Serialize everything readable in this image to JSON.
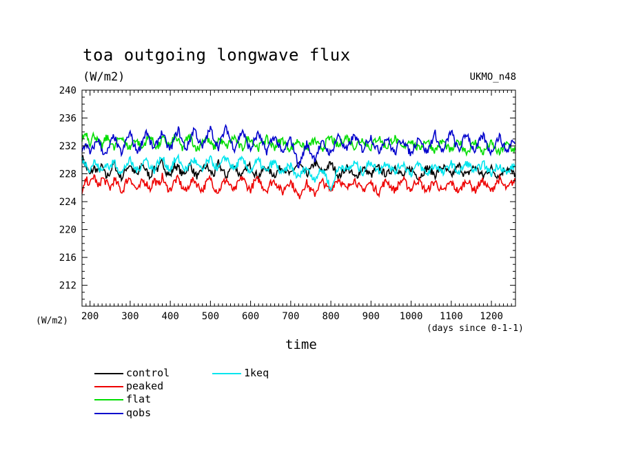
{
  "chart_data": {
    "type": "line",
    "title": "toa outgoing longwave flux",
    "units_label": "(W/m2)",
    "model_label": "UKMO_n48",
    "ylabel": "(W/m2)",
    "xlabel": "time",
    "x_units_label": "(days since 0-1-1)",
    "xlim": [
      180,
      1260
    ],
    "ylim": [
      209,
      240
    ],
    "x_ticks": [
      200,
      300,
      400,
      500,
      600,
      700,
      800,
      900,
      1000,
      1100,
      1200
    ],
    "y_ticks": [
      212,
      216,
      220,
      224,
      228,
      232,
      236,
      240
    ],
    "grid": false,
    "legend_position": "below",
    "x_start": 180,
    "x_step": 10,
    "series": [
      {
        "name": "control",
        "color": "#000000",
        "values": [
          230.5,
          229.0,
          227.8,
          228.9,
          228.3,
          229.1,
          227.5,
          228.2,
          229.6,
          228.0,
          227.4,
          228.8,
          229.3,
          228.1,
          227.9,
          229.5,
          228.4,
          227.6,
          229.0,
          228.6,
          229.8,
          228.3,
          227.7,
          229.2,
          228.9,
          227.8,
          228.5,
          229.4,
          228.0,
          227.5,
          228.7,
          229.1,
          228.2,
          227.9,
          229.6,
          228.4,
          227.6,
          228.8,
          229.3,
          228.0,
          227.7,
          228.9,
          229.2,
          228.1,
          227.6,
          228.5,
          228.9,
          228.2,
          227.8,
          228.6,
          229.0,
          228.3,
          227.8,
          228.9,
          229.4,
          228.5,
          227.9,
          228.6,
          229.7,
          228.8,
          228.1,
          228.9,
          229.5,
          228.6,
          227.5,
          228.3,
          229.0,
          228.2,
          227.4,
          228.1,
          228.8,
          228.4,
          227.7,
          228.6,
          228.9,
          228.2,
          227.9,
          228.5,
          229.1,
          228.3,
          227.6,
          228.4,
          228.8,
          228.0,
          227.5,
          228.2,
          228.9,
          228.4,
          227.8,
          228.6,
          229.0,
          228.3,
          227.7,
          228.5,
          229.2,
          228.1,
          227.8,
          228.7,
          229.0,
          228.2,
          227.6,
          228.4,
          228.8,
          228.0,
          227.6,
          228.5,
          228.9,
          228.2,
          227.9
        ]
      },
      {
        "name": "peaked",
        "color": "#ee0000",
        "values": [
          225.0,
          227.2,
          226.5,
          227.8,
          226.0,
          227.4,
          226.8,
          225.9,
          227.1,
          226.4,
          225.3,
          226.9,
          227.5,
          226.2,
          225.6,
          227.0,
          226.7,
          225.8,
          227.2,
          226.3,
          227.6,
          226.1,
          225.7,
          226.9,
          227.3,
          226.0,
          225.5,
          226.8,
          227.1,
          226.2,
          225.6,
          226.7,
          227.4,
          226.0,
          225.4,
          226.6,
          227.2,
          226.1,
          225.5,
          226.8,
          227.5,
          226.3,
          225.7,
          226.9,
          227.2,
          226.2,
          225.6,
          226.7,
          227.0,
          226.1,
          225.3,
          226.5,
          226.9,
          225.8,
          224.6,
          225.9,
          226.7,
          225.6,
          225.1,
          226.3,
          226.9,
          226.0,
          225.6,
          226.8,
          227.3,
          226.4,
          225.7,
          226.9,
          227.1,
          226.2,
          225.5,
          226.4,
          226.7,
          225.8,
          225.3,
          226.5,
          227.0,
          226.1,
          225.6,
          226.6,
          227.2,
          226.3,
          225.7,
          226.8,
          227.1,
          226.0,
          225.5,
          226.4,
          226.9,
          226.0,
          225.3,
          226.3,
          226.8,
          225.9,
          225.4,
          226.5,
          227.1,
          226.2,
          225.6,
          226.6,
          227.0,
          226.1,
          225.5,
          226.6,
          227.2,
          226.3,
          225.8,
          226.7,
          226.9
        ]
      },
      {
        "name": "flat",
        "color": "#00dd00",
        "values": [
          233.0,
          234.0,
          232.4,
          233.7,
          232.6,
          231.9,
          233.2,
          232.8,
          231.5,
          232.9,
          233.4,
          232.1,
          231.7,
          233.0,
          232.5,
          231.6,
          232.8,
          233.5,
          232.2,
          231.8,
          233.1,
          232.6,
          231.9,
          233.3,
          232.7,
          231.6,
          232.9,
          233.4,
          232.0,
          231.5,
          232.8,
          233.2,
          232.3,
          231.7,
          233.0,
          232.5,
          231.8,
          232.7,
          233.3,
          232.1,
          231.6,
          232.9,
          233.1,
          232.2,
          231.7,
          232.6,
          233.0,
          232.3,
          231.8,
          232.5,
          232.9,
          232.0,
          231.5,
          232.4,
          232.8,
          231.9,
          231.4,
          232.3,
          232.8,
          232.0,
          231.6,
          232.7,
          233.2,
          232.4,
          231.9,
          232.9,
          233.3,
          232.5,
          231.8,
          232.6,
          233.0,
          232.2,
          231.7,
          232.8,
          233.2,
          232.3,
          231.8,
          232.7,
          233.1,
          232.2,
          231.6,
          232.5,
          232.9,
          232.0,
          231.5,
          232.4,
          232.8,
          231.9,
          231.3,
          232.2,
          232.7,
          231.8,
          231.2,
          232.1,
          232.6,
          231.7,
          231.1,
          232.0,
          232.5,
          231.6,
          231.0,
          231.9,
          232.4,
          231.5,
          230.9,
          231.8,
          232.3,
          231.6,
          231.4
        ]
      },
      {
        "name": "qobs",
        "color": "#0000cc",
        "values": [
          231.0,
          232.5,
          230.8,
          232.0,
          233.0,
          231.4,
          230.6,
          232.2,
          233.5,
          231.7,
          230.9,
          232.8,
          233.9,
          232.0,
          231.2,
          232.6,
          234.2,
          232.5,
          231.5,
          232.9,
          234.0,
          232.3,
          231.4,
          233.0,
          234.4,
          232.6,
          231.5,
          233.1,
          234.6,
          232.8,
          231.7,
          233.2,
          234.5,
          232.9,
          231.8,
          233.4,
          234.7,
          232.7,
          231.6,
          233.0,
          234.3,
          232.5,
          231.4,
          232.9,
          233.8,
          232.2,
          231.2,
          232.6,
          233.4,
          232.0,
          230.8,
          232.1,
          233.0,
          231.2,
          229.0,
          230.8,
          232.3,
          231.0,
          230.2,
          231.6,
          232.5,
          231.5,
          230.8,
          232.4,
          233.6,
          232.1,
          231.3,
          232.8,
          233.5,
          232.2,
          231.4,
          232.7,
          233.3,
          232.0,
          231.2,
          232.5,
          233.2,
          231.8,
          230.9,
          232.4,
          233.0,
          231.7,
          230.8,
          232.2,
          233.4,
          231.9,
          231.0,
          232.6,
          233.8,
          232.0,
          231.1,
          232.8,
          234.2,
          232.3,
          231.3,
          232.9,
          233.8,
          232.1,
          231.2,
          232.6,
          233.5,
          231.9,
          231.0,
          232.5,
          233.4,
          232.0,
          231.2,
          232.6,
          232.4
        ]
      },
      {
        "name": "1keq",
        "color": "#00e5ee",
        "values": [
          230.0,
          229.4,
          228.6,
          229.8,
          229.0,
          228.3,
          229.5,
          228.8,
          229.9,
          228.7,
          228.1,
          229.3,
          229.9,
          228.9,
          228.4,
          229.6,
          230.1,
          229.0,
          228.5,
          229.7,
          230.3,
          229.2,
          228.6,
          229.8,
          230.2,
          229.1,
          228.5,
          229.6,
          230.0,
          229.0,
          228.4,
          229.5,
          230.1,
          229.2,
          228.7,
          229.8,
          230.4,
          229.3,
          228.6,
          229.7,
          230.0,
          229.0,
          228.3,
          229.4,
          229.9,
          228.9,
          228.2,
          229.3,
          229.7,
          228.6,
          227.9,
          228.8,
          229.2,
          228.1,
          227.4,
          228.4,
          228.9,
          227.8,
          227.3,
          228.1,
          228.6,
          227.5,
          225.5,
          227.6,
          228.8,
          229.2,
          228.4,
          229.0,
          229.6,
          228.8,
          228.2,
          229.1,
          229.8,
          228.9,
          228.3,
          229.2,
          229.7,
          228.8,
          228.2,
          229.0,
          229.5,
          228.6,
          228.0,
          228.9,
          229.4,
          228.5,
          227.9,
          228.8,
          229.3,
          228.6,
          228.0,
          228.9,
          229.5,
          228.7,
          228.1,
          229.0,
          229.6,
          228.8,
          228.2,
          229.0,
          229.5,
          228.6,
          228.0,
          228.8,
          229.3,
          228.5,
          228.0,
          228.9,
          229.1
        ]
      }
    ]
  }
}
